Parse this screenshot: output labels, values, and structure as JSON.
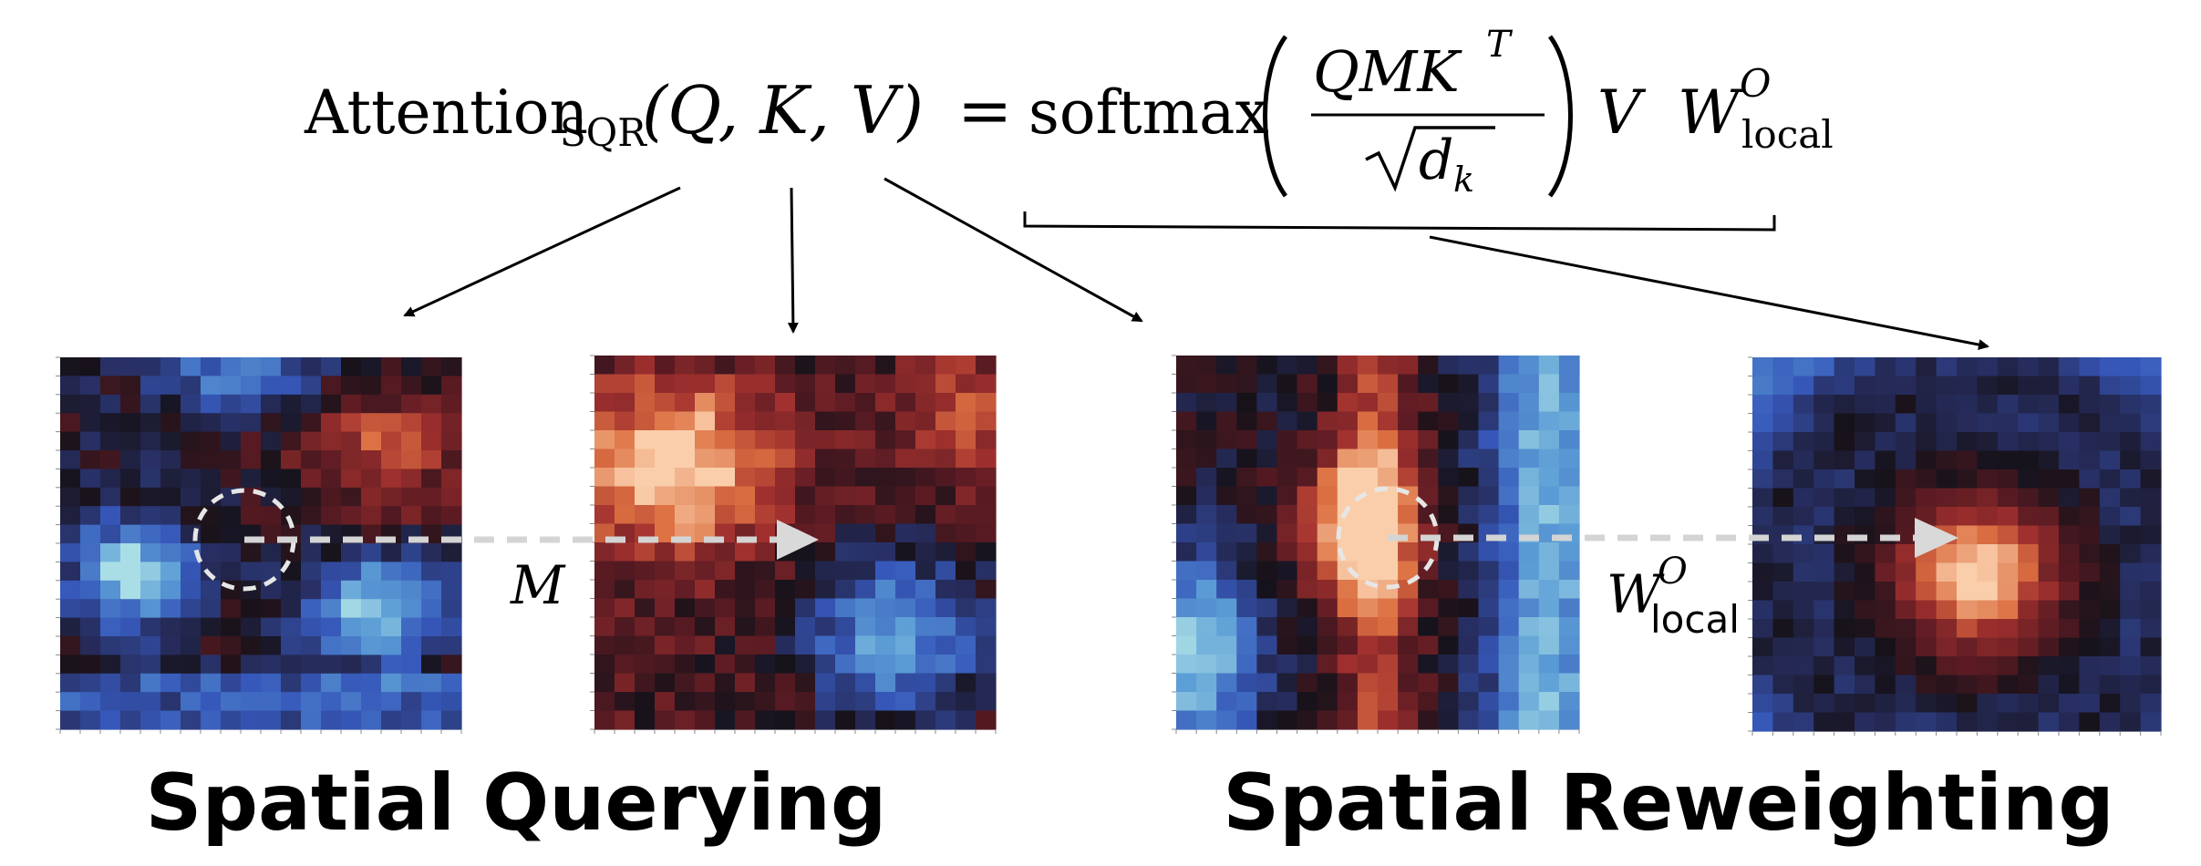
{
  "formula": {
    "lhs_main": "Attention",
    "lhs_sub": "SQR",
    "lhs_args": "(Q, K, V)",
    "equals": "=",
    "func": "softmax",
    "numerator_main": "QMK",
    "numerator_sup": "T",
    "denominator_d": "d",
    "denominator_sub": "k",
    "v_term": "V",
    "w_main": "W",
    "w_sup": "O",
    "w_sub": "local"
  },
  "labels": {
    "m": "M",
    "wlocal_main": "W",
    "wlocal_sup": "O",
    "wlocal_sub": "local"
  },
  "captions": {
    "left": "Spatial Querying",
    "right": "Spatial Reweighting"
  },
  "heatmaps": [
    {
      "name": "query-heatmap",
      "palette": "cool"
    },
    {
      "name": "key-heatmap",
      "palette": "warm"
    },
    {
      "name": "value-heatmap",
      "palette": "mixed"
    },
    {
      "name": "output-heatmap",
      "palette": "radial"
    }
  ],
  "colors": {
    "arrow": "#000000",
    "dashed": "#d4d4d4",
    "circle": "#e6e6e6"
  }
}
